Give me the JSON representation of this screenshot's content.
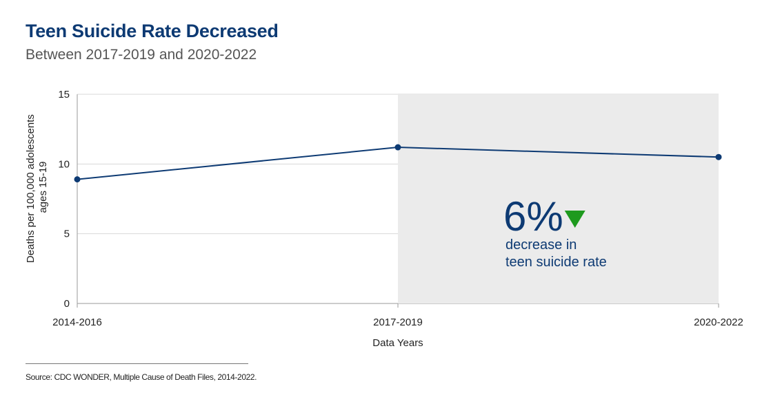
{
  "title": "Teen Suicide Rate Decreased",
  "subtitle": "Between 2017-2019 and 2020-2022",
  "source": "Source: CDC WONDER, Multiple Cause of Death Files, 2014-2022.",
  "colors": {
    "title": "#0d3a73",
    "line": "#0d3a73",
    "shade": "#ebebeb",
    "arrow": "#1e9a1e",
    "grid": "#d8d8d8"
  },
  "chart_data": {
    "type": "line",
    "categories": [
      "2014-2016",
      "2017-2019",
      "2020-2022"
    ],
    "values": [
      8.9,
      11.2,
      10.5
    ],
    "xlabel": "Data Years",
    "ylabel_lines": [
      "Deaths per 100,000 adolescents",
      "ages 15-19"
    ],
    "ylim": [
      0,
      15
    ],
    "yticks": [
      0,
      5,
      10,
      15
    ],
    "grid": true,
    "shaded_range": [
      "2017-2019",
      "2020-2022"
    ],
    "annotation": {
      "big": "6%",
      "arrow": "down-triangle-icon",
      "lines": [
        "decrease in",
        "teen suicide rate"
      ]
    }
  }
}
